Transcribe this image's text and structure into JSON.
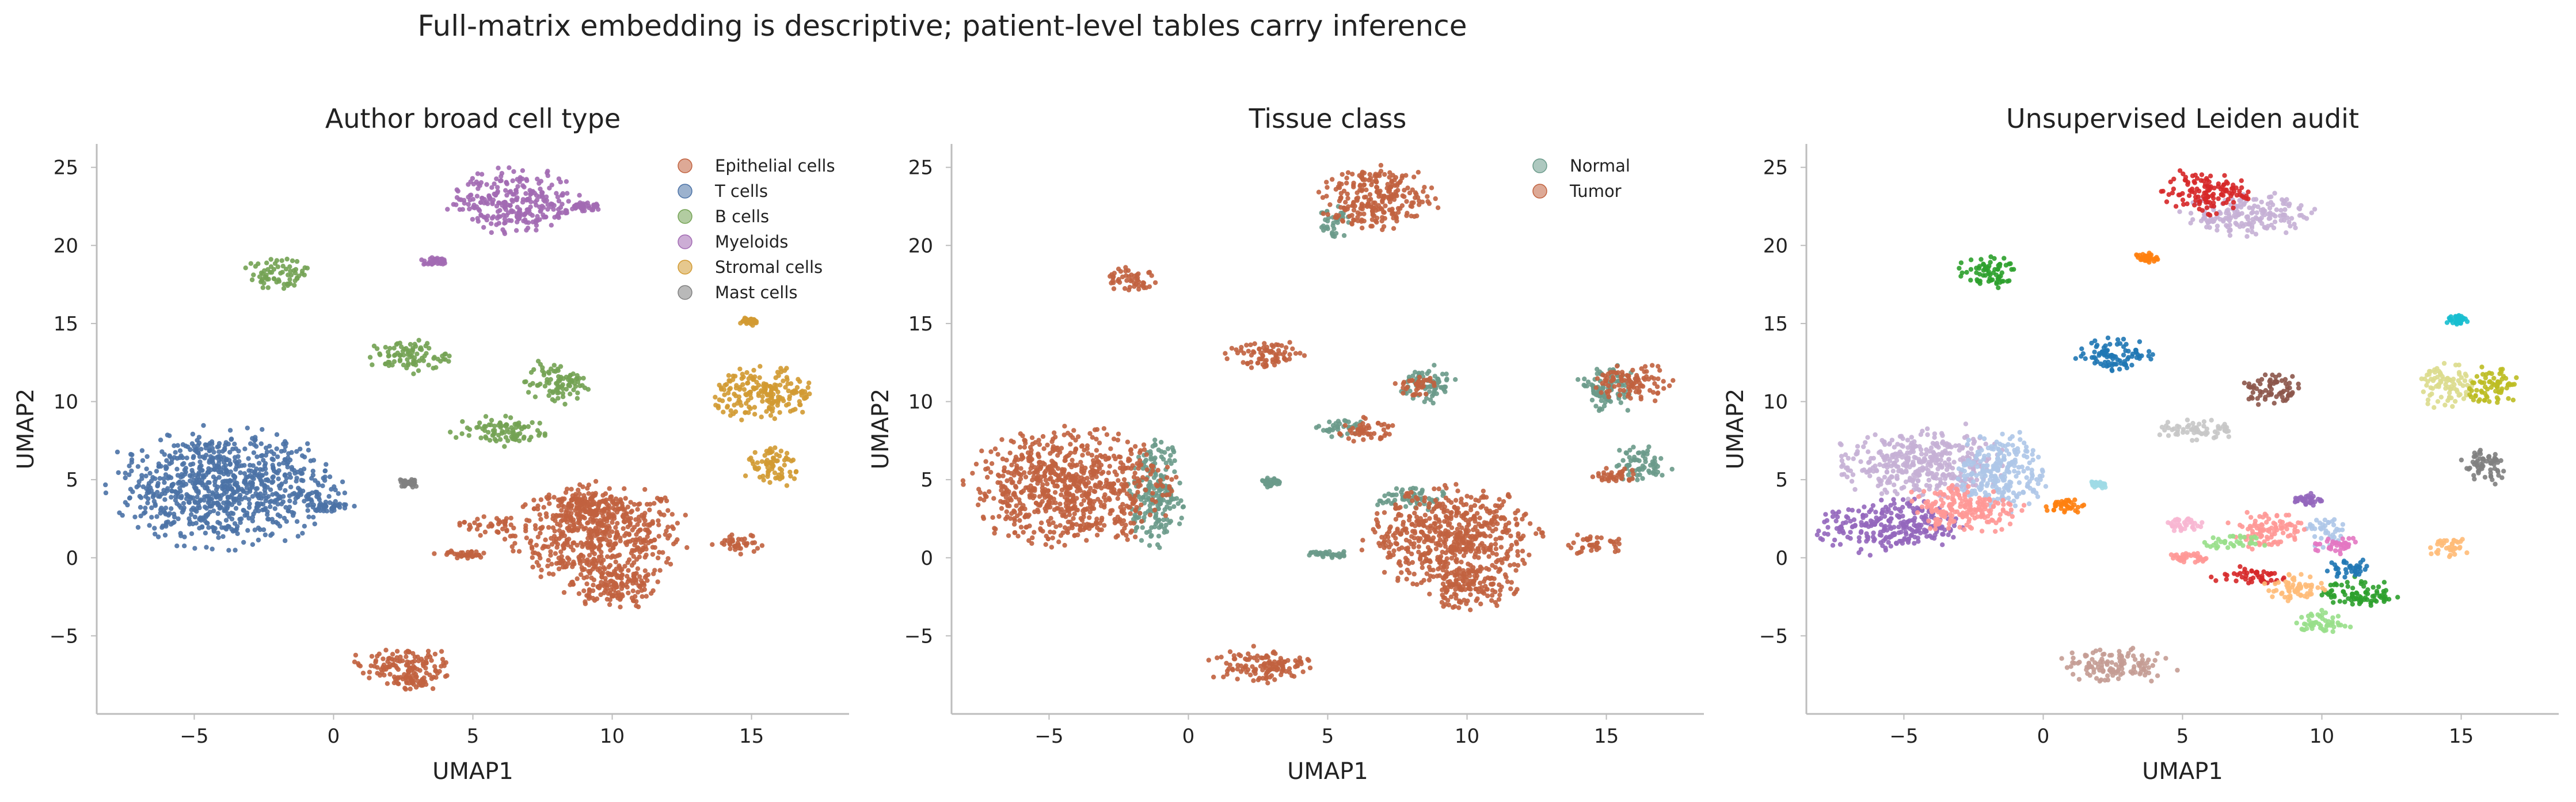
{
  "figure": {
    "suptitle": "Full-matrix embedding is descriptive; patient-level tables carry inference"
  },
  "chart_data": [
    {
      "type": "scatter",
      "title": "Author broad cell type",
      "xlabel": "UMAP1",
      "ylabel": "UMAP2",
      "xlim": [
        -8.5,
        18.5
      ],
      "ylim": [
        -10,
        26.5
      ],
      "xticks": [
        -5,
        0,
        5,
        10,
        15
      ],
      "yticks": [
        -5,
        0,
        5,
        10,
        15,
        20,
        25
      ],
      "grid": false,
      "legend": {
        "placement": "top-right"
      },
      "series": [
        {
          "name": "Epithelial cells",
          "color": "#c1623f",
          "clusters": [
            {
              "x": 9.5,
              "y": 1.5,
              "rx": 3.0,
              "ry": 3.0
            },
            {
              "x": 9.0,
              "y": 3.3,
              "rx": 1.6,
              "ry": 1.0
            },
            {
              "x": 10.0,
              "y": -1.8,
              "rx": 1.6,
              "ry": 1.4
            },
            {
              "x": 5.5,
              "y": 2.1,
              "rx": 1.0,
              "ry": 0.6
            },
            {
              "x": 4.7,
              "y": 0.2,
              "rx": 1.0,
              "ry": 0.3
            },
            {
              "x": 14.6,
              "y": 0.8,
              "rx": 0.9,
              "ry": 0.7
            },
            {
              "x": 2.5,
              "y": -6.9,
              "rx": 1.8,
              "ry": 1.1
            },
            {
              "x": 3.0,
              "y": -8.0,
              "rx": 1.0,
              "ry": 0.5
            }
          ]
        },
        {
          "name": "T cells",
          "color": "#4b72a6",
          "clusters": [
            {
              "x": -3.9,
              "y": 4.5,
              "rx": 3.8,
              "ry": 3.6
            },
            {
              "x": -0.2,
              "y": 3.3,
              "rx": 0.9,
              "ry": 0.4
            }
          ]
        },
        {
          "name": "B cells",
          "color": "#73a253",
          "clusters": [
            {
              "x": -2.0,
              "y": 18.2,
              "rx": 1.1,
              "ry": 1.0
            },
            {
              "x": 2.7,
              "y": 12.9,
              "rx": 1.4,
              "ry": 1.0
            },
            {
              "x": 8.0,
              "y": 11.2,
              "rx": 1.1,
              "ry": 1.3
            },
            {
              "x": 6.0,
              "y": 8.1,
              "rx": 1.6,
              "ry": 0.9
            }
          ]
        },
        {
          "name": "Myeloids",
          "color": "#a26ab3",
          "clusters": [
            {
              "x": 6.5,
              "y": 22.8,
              "rx": 2.2,
              "ry": 2.0
            },
            {
              "x": 3.6,
              "y": 19.0,
              "rx": 0.5,
              "ry": 0.3
            },
            {
              "x": 9.0,
              "y": 22.5,
              "rx": 0.6,
              "ry": 0.3
            }
          ]
        },
        {
          "name": "Stromal cells",
          "color": "#d29a32",
          "clusters": [
            {
              "x": 15.5,
              "y": 10.5,
              "rx": 1.8,
              "ry": 1.7
            },
            {
              "x": 15.8,
              "y": 5.8,
              "rx": 1.0,
              "ry": 1.2
            },
            {
              "x": 14.9,
              "y": 15.1,
              "rx": 0.4,
              "ry": 0.3
            }
          ]
        },
        {
          "name": "Mast cells",
          "color": "#808080",
          "clusters": [
            {
              "x": 2.7,
              "y": 4.8,
              "rx": 0.35,
              "ry": 0.3
            }
          ]
        }
      ]
    },
    {
      "type": "scatter",
      "title": "Tissue class",
      "xlabel": "UMAP1",
      "ylabel": "UMAP2",
      "xlim": [
        -8.5,
        18.5
      ],
      "ylim": [
        -10,
        26.5
      ],
      "xticks": [
        -5,
        0,
        5,
        10,
        15
      ],
      "yticks": [
        -5,
        0,
        5,
        10,
        15,
        20,
        25
      ],
      "grid": false,
      "legend": {
        "placement": "top-right"
      },
      "series": [
        {
          "name": "Normal",
          "color": "#6a9a8a",
          "clusters": [
            {
              "x": -1.2,
              "y": 4.2,
              "rx": 1.0,
              "ry": 3.2
            },
            {
              "x": 15.0,
              "y": 10.8,
              "rx": 1.0,
              "ry": 1.5
            },
            {
              "x": 16.2,
              "y": 6.0,
              "rx": 0.9,
              "ry": 1.2
            },
            {
              "x": 8.6,
              "y": 11.0,
              "rx": 1.0,
              "ry": 1.2
            },
            {
              "x": 8.0,
              "y": 3.8,
              "rx": 1.2,
              "ry": 0.8
            },
            {
              "x": 4.9,
              "y": 0.2,
              "rx": 0.8,
              "ry": 0.3
            },
            {
              "x": 5.2,
              "y": 21.5,
              "rx": 0.6,
              "ry": 1.0
            },
            {
              "x": 5.5,
              "y": 8.3,
              "rx": 0.8,
              "ry": 0.6
            },
            {
              "x": 3.0,
              "y": 4.8,
              "rx": 0.35,
              "ry": 0.3
            }
          ]
        },
        {
          "name": "Tumor",
          "color": "#c1623f",
          "clusters": [
            {
              "x": -4.3,
              "y": 4.5,
              "rx": 3.5,
              "ry": 3.5
            },
            {
              "x": 9.5,
              "y": 1.3,
              "rx": 3.0,
              "ry": 3.0
            },
            {
              "x": 10.0,
              "y": -1.8,
              "rx": 1.6,
              "ry": 1.4
            },
            {
              "x": 6.8,
              "y": 23.0,
              "rx": 2.0,
              "ry": 2.0
            },
            {
              "x": 2.7,
              "y": 13.0,
              "rx": 1.4,
              "ry": 0.9
            },
            {
              "x": -2.0,
              "y": 17.9,
              "rx": 1.0,
              "ry": 0.8
            },
            {
              "x": 2.5,
              "y": -6.9,
              "rx": 1.8,
              "ry": 1.1
            },
            {
              "x": 16.0,
              "y": 11.2,
              "rx": 1.3,
              "ry": 1.2
            },
            {
              "x": 14.6,
              "y": 0.8,
              "rx": 0.9,
              "ry": 0.7
            },
            {
              "x": 6.4,
              "y": 8.2,
              "rx": 1.1,
              "ry": 0.7
            },
            {
              "x": 8.2,
              "y": 11.0,
              "rx": 0.7,
              "ry": 0.8
            },
            {
              "x": 15.3,
              "y": 5.2,
              "rx": 0.8,
              "ry": 0.6
            }
          ]
        }
      ]
    },
    {
      "type": "scatter",
      "title": "Unsupervised Leiden audit",
      "xlabel": "UMAP1",
      "ylabel": "UMAP2",
      "xlim": [
        -8.5,
        18.5
      ],
      "ylim": [
        -10,
        26.5
      ],
      "xticks": [
        -5,
        0,
        5,
        10,
        15
      ],
      "yticks": [
        -5,
        0,
        5,
        10,
        15,
        20,
        25
      ],
      "grid": false,
      "legend": null,
      "series": [
        {
          "color": "#c5b0d5",
          "clusters": [
            {
              "x": -4.5,
              "y": 6.0,
              "rx": 3.0,
              "ry": 2.0
            },
            {
              "x": 7.3,
              "y": 22.0,
              "rx": 2.2,
              "ry": 1.3
            }
          ]
        },
        {
          "color": "#aec7e8",
          "clusters": [
            {
              "x": -1.5,
              "y": 5.5,
              "rx": 1.6,
              "ry": 2.4
            },
            {
              "x": 10.2,
              "y": 1.6,
              "rx": 0.7,
              "ry": 0.9
            }
          ]
        },
        {
          "color": "#9467bd",
          "clusters": [
            {
              "x": -5.5,
              "y": 2.0,
              "rx": 2.5,
              "ry": 1.7
            },
            {
              "x": 9.5,
              "y": 3.7,
              "rx": 0.5,
              "ry": 0.4
            }
          ]
        },
        {
          "color": "#ff9896",
          "clusters": [
            {
              "x": -2.8,
              "y": 3.2,
              "rx": 1.9,
              "ry": 1.6
            },
            {
              "x": 8.0,
              "y": 1.8,
              "rx": 1.3,
              "ry": 1.2
            },
            {
              "x": 5.3,
              "y": 0.0,
              "rx": 0.8,
              "ry": 0.3
            }
          ]
        },
        {
          "color": "#ff7f0e",
          "clusters": [
            {
              "x": 0.8,
              "y": 3.3,
              "rx": 0.7,
              "ry": 0.5
            },
            {
              "x": 3.7,
              "y": 19.2,
              "rx": 0.4,
              "ry": 0.3
            }
          ]
        },
        {
          "color": "#d62728",
          "clusters": [
            {
              "x": 5.8,
              "y": 23.4,
              "rx": 1.5,
              "ry": 1.3
            },
            {
              "x": 7.5,
              "y": -1.2,
              "rx": 1.3,
              "ry": 0.6
            }
          ]
        },
        {
          "color": "#2ca02c",
          "clusters": [
            {
              "x": -2.0,
              "y": 18.2,
              "rx": 1.1,
              "ry": 1.0
            },
            {
              "x": 11.3,
              "y": -2.3,
              "rx": 1.3,
              "ry": 1.0
            }
          ]
        },
        {
          "color": "#1f77b4",
          "clusters": [
            {
              "x": 2.7,
              "y": 13.0,
              "rx": 1.4,
              "ry": 1.0
            },
            {
              "x": 11.0,
              "y": -0.7,
              "rx": 0.9,
              "ry": 0.6
            }
          ]
        },
        {
          "color": "#8c564b",
          "clusters": [
            {
              "x": 8.1,
              "y": 10.9,
              "rx": 1.0,
              "ry": 1.1
            }
          ]
        },
        {
          "color": "#c7c7c7",
          "clusters": [
            {
              "x": 5.5,
              "y": 8.2,
              "rx": 1.4,
              "ry": 0.7
            }
          ]
        },
        {
          "color": "#dbdb8d",
          "clusters": [
            {
              "x": 14.5,
              "y": 11.0,
              "rx": 1.0,
              "ry": 1.4
            }
          ]
        },
        {
          "color": "#bcbd22",
          "clusters": [
            {
              "x": 16.2,
              "y": 11.0,
              "rx": 0.9,
              "ry": 1.3
            }
          ]
        },
        {
          "color": "#17becf",
          "clusters": [
            {
              "x": 14.9,
              "y": 15.2,
              "rx": 0.4,
              "ry": 0.3
            }
          ]
        },
        {
          "color": "#7f7f7f",
          "clusters": [
            {
              "x": 15.8,
              "y": 5.8,
              "rx": 0.9,
              "ry": 1.1
            }
          ]
        },
        {
          "color": "#9edae5",
          "clusters": [
            {
              "x": 2.0,
              "y": 4.7,
              "rx": 0.3,
              "ry": 0.25
            }
          ]
        },
        {
          "color": "#ffbb78",
          "clusters": [
            {
              "x": 14.5,
              "y": 0.7,
              "rx": 0.8,
              "ry": 0.6
            },
            {
              "x": 9.0,
              "y": -1.8,
              "rx": 1.1,
              "ry": 0.9
            }
          ]
        },
        {
          "color": "#98df8a",
          "clusters": [
            {
              "x": 6.8,
              "y": 1.0,
              "rx": 1.2,
              "ry": 0.4
            },
            {
              "x": 10.0,
              "y": -4.2,
              "rx": 1.0,
              "ry": 0.8
            }
          ]
        },
        {
          "color": "#e377c2",
          "clusters": [
            {
              "x": 10.5,
              "y": 0.8,
              "rx": 1.0,
              "ry": 0.5
            }
          ]
        },
        {
          "color": "#f7b6d2",
          "clusters": [
            {
              "x": 5.0,
              "y": 2.1,
              "rx": 0.8,
              "ry": 0.5
            }
          ]
        },
        {
          "color": "#c49c94",
          "clusters": [
            {
              "x": 2.5,
              "y": -6.9,
              "rx": 1.8,
              "ry": 1.1
            }
          ]
        }
      ]
    }
  ]
}
